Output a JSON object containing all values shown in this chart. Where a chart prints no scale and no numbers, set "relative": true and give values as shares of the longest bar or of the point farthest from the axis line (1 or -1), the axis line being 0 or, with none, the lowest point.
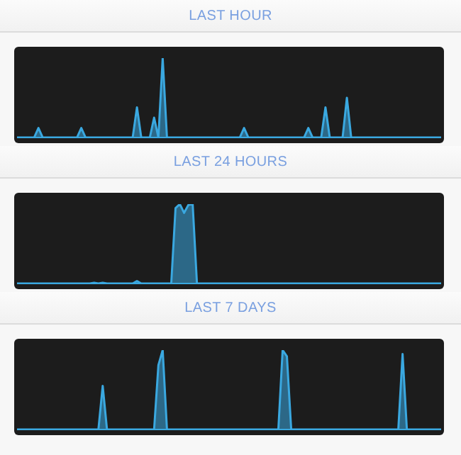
{
  "chart_data": [
    {
      "type": "area",
      "title": "LAST HOUR",
      "relative": true,
      "color": "#3aa8e0",
      "categories": [
        null,
        null,
        null,
        null,
        null,
        null,
        null,
        null,
        null,
        null,
        null,
        null,
        null,
        null,
        null,
        null,
        null,
        null,
        null,
        null,
        null,
        null,
        null,
        null,
        null,
        null,
        null,
        null,
        null,
        null,
        null,
        null,
        null,
        null,
        null,
        null,
        null,
        null,
        null,
        null,
        null,
        null,
        null,
        null,
        null,
        null,
        null,
        null,
        null,
        null,
        null,
        null,
        null,
        null,
        null,
        null,
        null,
        null,
        null,
        null,
        null,
        null,
        null,
        null,
        null,
        null,
        null,
        null,
        null,
        null,
        null,
        null,
        null,
        null,
        null,
        null,
        null,
        null,
        null,
        null,
        null,
        null,
        null,
        null,
        null,
        null,
        null,
        null,
        null,
        null,
        null,
        null,
        null,
        null,
        null,
        null,
        null,
        null,
        null,
        null
      ],
      "values": [
        0,
        0,
        0,
        0,
        0,
        0.12,
        0,
        0,
        0,
        0,
        0,
        0,
        0,
        0,
        0,
        0.12,
        0,
        0,
        0,
        0,
        0,
        0,
        0,
        0,
        0,
        0,
        0,
        0,
        0.38,
        0,
        0,
        0,
        0.25,
        0,
        1,
        0,
        0,
        0,
        0,
        0,
        0,
        0,
        0,
        0,
        0,
        0,
        0,
        0,
        0,
        0,
        0,
        0,
        0,
        0.12,
        0,
        0,
        0,
        0,
        0,
        0,
        0,
        0,
        0,
        0,
        0,
        0,
        0,
        0,
        0.12,
        0,
        0,
        0,
        0.38,
        0,
        0,
        0,
        0,
        0.5,
        0,
        0,
        0,
        0,
        0,
        0,
        0,
        0,
        0,
        0,
        0,
        0,
        0,
        0,
        0,
        0,
        0,
        0,
        0,
        0,
        0,
        0
      ]
    },
    {
      "type": "area",
      "title": "LAST 24 HOURS",
      "relative": true,
      "color": "#3aa8e0",
      "categories": [
        null,
        null,
        null,
        null,
        null,
        null,
        null,
        null,
        null,
        null,
        null,
        null,
        null,
        null,
        null,
        null,
        null,
        null,
        null,
        null,
        null,
        null,
        null,
        null,
        null,
        null,
        null,
        null,
        null,
        null,
        null,
        null,
        null,
        null,
        null,
        null,
        null,
        null,
        null,
        null,
        null,
        null,
        null,
        null,
        null,
        null,
        null,
        null,
        null,
        null,
        null,
        null,
        null,
        null,
        null,
        null,
        null,
        null,
        null,
        null,
        null,
        null,
        null,
        null,
        null,
        null,
        null,
        null,
        null,
        null,
        null,
        null,
        null,
        null,
        null,
        null,
        null,
        null,
        null,
        null,
        null,
        null,
        null,
        null,
        null,
        null,
        null,
        null,
        null,
        null,
        null,
        null,
        null,
        null,
        null,
        null,
        null,
        null,
        null,
        null
      ],
      "values": [
        0,
        0,
        0,
        0,
        0,
        0,
        0,
        0,
        0,
        0,
        0,
        0,
        0,
        0,
        0,
        0,
        0,
        0,
        0.01,
        0,
        0.01,
        0,
        0,
        0,
        0,
        0,
        0,
        0,
        0.03,
        0,
        0,
        0,
        0,
        0,
        0,
        0,
        0,
        0.95,
        1,
        0.89,
        0.99,
        1,
        0,
        0,
        0,
        0,
        0,
        0,
        0,
        0,
        0,
        0,
        0,
        0,
        0,
        0,
        0,
        0,
        0,
        0,
        0,
        0,
        0,
        0,
        0,
        0,
        0,
        0,
        0,
        0,
        0,
        0,
        0,
        0,
        0,
        0,
        0,
        0,
        0,
        0,
        0,
        0,
        0,
        0,
        0,
        0,
        0,
        0,
        0,
        0,
        0,
        0,
        0,
        0,
        0,
        0,
        0,
        0,
        0,
        0
      ]
    },
    {
      "type": "area",
      "title": "LAST 7 DAYS",
      "relative": true,
      "color": "#3aa8e0",
      "categories": [
        null,
        null,
        null,
        null,
        null,
        null,
        null,
        null,
        null,
        null,
        null,
        null,
        null,
        null,
        null,
        null,
        null,
        null,
        null,
        null,
        null,
        null,
        null,
        null,
        null,
        null,
        null,
        null,
        null,
        null,
        null,
        null,
        null,
        null,
        null,
        null,
        null,
        null,
        null,
        null,
        null,
        null,
        null,
        null,
        null,
        null,
        null,
        null,
        null,
        null,
        null,
        null,
        null,
        null,
        null,
        null,
        null,
        null,
        null,
        null,
        null,
        null,
        null,
        null,
        null,
        null,
        null,
        null,
        null,
        null,
        null,
        null,
        null,
        null,
        null,
        null,
        null,
        null,
        null,
        null,
        null,
        null,
        null,
        null,
        null,
        null,
        null,
        null,
        null,
        null,
        null,
        null,
        null,
        null,
        null,
        null,
        null,
        null,
        null,
        null
      ],
      "values": [
        0,
        0,
        0,
        0,
        0,
        0,
        0,
        0,
        0,
        0,
        0,
        0,
        0,
        0,
        0,
        0,
        0,
        0,
        0,
        0,
        0.55,
        0,
        0,
        0,
        0,
        0,
        0,
        0,
        0,
        0,
        0,
        0,
        0,
        0.81,
        1,
        0,
        0,
        0,
        0,
        0,
        0,
        0,
        0,
        0,
        0,
        0,
        0,
        0,
        0,
        0,
        0,
        0,
        0,
        0,
        0,
        0,
        0,
        0,
        0,
        0,
        0,
        0,
        1,
        0.92,
        0,
        0,
        0,
        0,
        0,
        0,
        0,
        0,
        0,
        0,
        0,
        0,
        0,
        0,
        0,
        0,
        0,
        0,
        0,
        0,
        0,
        0,
        0,
        0,
        0,
        0,
        0.95,
        0,
        0,
        0,
        0,
        0,
        0,
        0,
        0,
        0
      ]
    }
  ]
}
